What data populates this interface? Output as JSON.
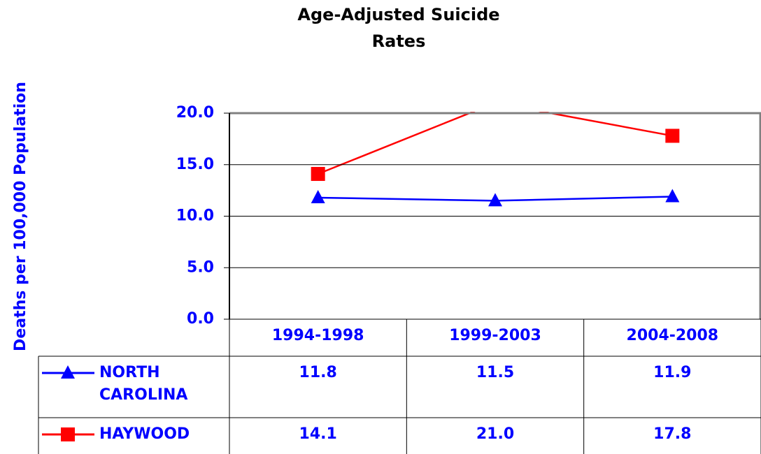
{
  "chart_data": {
    "type": "line",
    "title": "Age-Adjusted Suicide Rates",
    "y_label": "Deaths per 100,000 Population",
    "categories": [
      "1994-1998",
      "1999-2003",
      "2004-2008"
    ],
    "series": [
      {
        "name": "NORTH CAROLINA",
        "color": "#0000ff",
        "marker": "triangle",
        "values": [
          11.8,
          11.5,
          11.9
        ]
      },
      {
        "name": "HAYWOOD",
        "color": "#ff0000",
        "marker": "square",
        "values": [
          14.1,
          21.0,
          17.8
        ],
        "value_labels": [
          "14.1",
          "21.0",
          "17.8"
        ]
      }
    ],
    "ylim": [
      0,
      20
    ],
    "yticks": [
      {
        "value": 0,
        "label": "0.0"
      },
      {
        "value": 5,
        "label": "5.0"
      },
      {
        "value": 10,
        "label": "10.0"
      },
      {
        "value": 15,
        "label": "15.0"
      },
      {
        "value": 20,
        "label": "20.0"
      }
    ],
    "grid": true,
    "data_table": true
  }
}
